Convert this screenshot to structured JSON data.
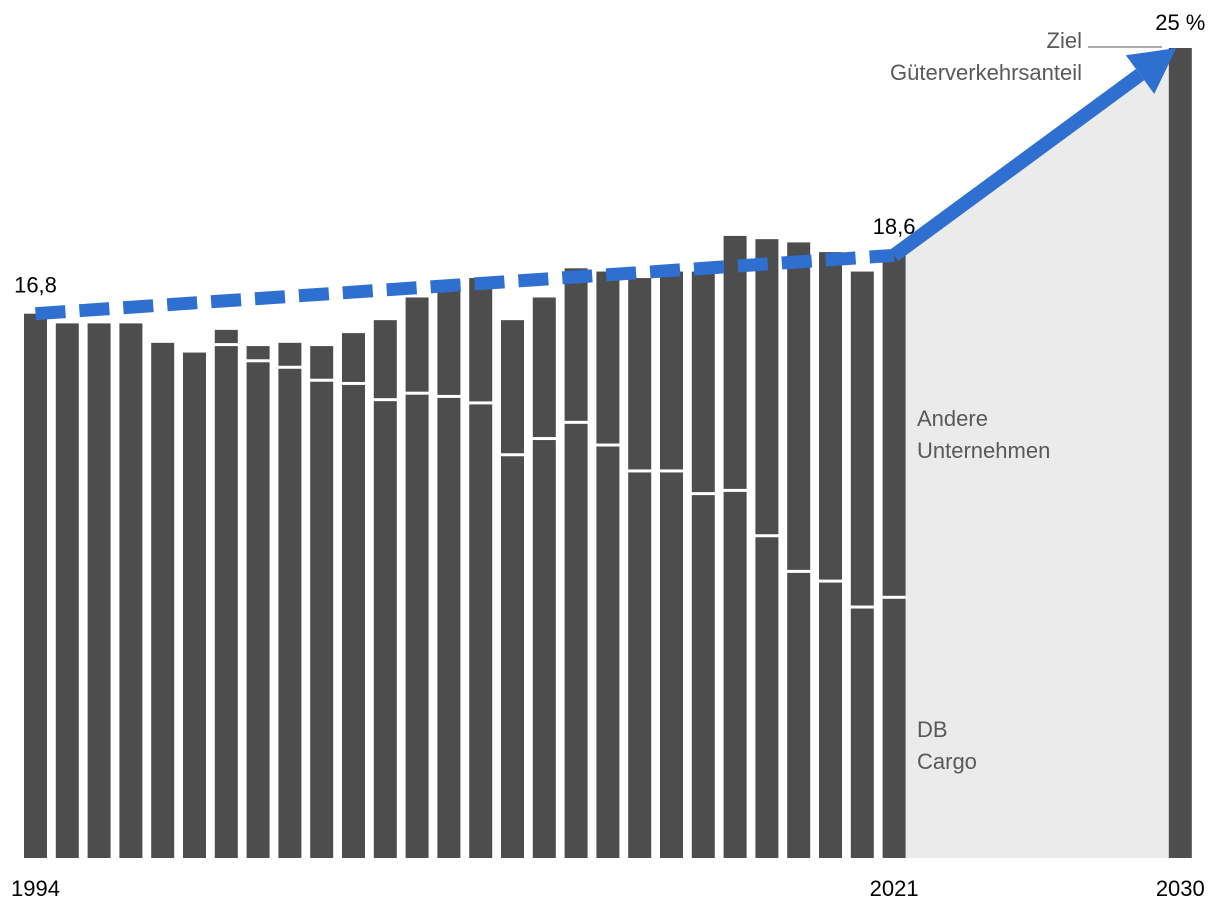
{
  "chart_data": {
    "type": "stacked_bar",
    "categories": [
      "1994",
      null,
      null,
      null,
      null,
      null,
      null,
      null,
      null,
      null,
      null,
      null,
      null,
      null,
      null,
      null,
      null,
      null,
      null,
      null,
      null,
      null,
      null,
      null,
      null,
      null,
      null,
      "2021",
      null,
      null,
      null,
      null,
      null,
      null,
      null,
      null,
      "2030"
    ],
    "ylim": [
      0,
      25
    ],
    "series": [
      {
        "name": "DB Cargo",
        "color": "#4d4d4d",
        "values": [
          16.8,
          16.5,
          16.5,
          16.5,
          15.9,
          15.6,
          15.8,
          15.3,
          15.1,
          14.7,
          14.6,
          14.1,
          14.3,
          14.2,
          14.0,
          12.4,
          12.9,
          13.4,
          12.7,
          11.9,
          11.9,
          11.2,
          11.3,
          9.9,
          8.8,
          8.5,
          7.7,
          8.0,
          null,
          null,
          null,
          null,
          null,
          null,
          null,
          null,
          null
        ]
      },
      {
        "name": "Andere Unternehmen",
        "color": "#4d4d4d",
        "values": [
          0,
          0,
          0,
          0,
          0,
          0,
          0.5,
          0.5,
          0.8,
          1.1,
          1.6,
          2.5,
          3.0,
          3.6,
          3.9,
          4.2,
          4.4,
          4.8,
          5.4,
          6.0,
          6.2,
          6.9,
          7.9,
          9.2,
          10.2,
          10.2,
          10.4,
          10.6,
          null,
          null,
          null,
          null,
          null,
          null,
          null,
          null,
          null
        ]
      },
      {
        "name": "Ziel Güterverkehrsanteil",
        "color": "#4d4d4d",
        "values": [
          null,
          null,
          null,
          null,
          null,
          null,
          null,
          null,
          null,
          null,
          null,
          null,
          null,
          null,
          null,
          null,
          null,
          null,
          null,
          null,
          null,
          null,
          null,
          null,
          null,
          null,
          null,
          null,
          null,
          null,
          null,
          null,
          null,
          null,
          null,
          null,
          25
        ],
        "value_labels": [
          null,
          null,
          null,
          null,
          null,
          null,
          null,
          null,
          null,
          null,
          null,
          null,
          null,
          null,
          null,
          null,
          null,
          null,
          null,
          null,
          null,
          null,
          null,
          null,
          null,
          null,
          null,
          null,
          null,
          null,
          null,
          null,
          null,
          null,
          null,
          null,
          "25 %"
        ]
      }
    ],
    "annotations": [
      {
        "text": "16,8",
        "value": 16.8,
        "category": 0
      },
      {
        "text": "18,6",
        "value": 18.6,
        "category": 27
      }
    ],
    "trend_color": "#2e6fd0",
    "projection_color": "#ebebeb"
  }
}
